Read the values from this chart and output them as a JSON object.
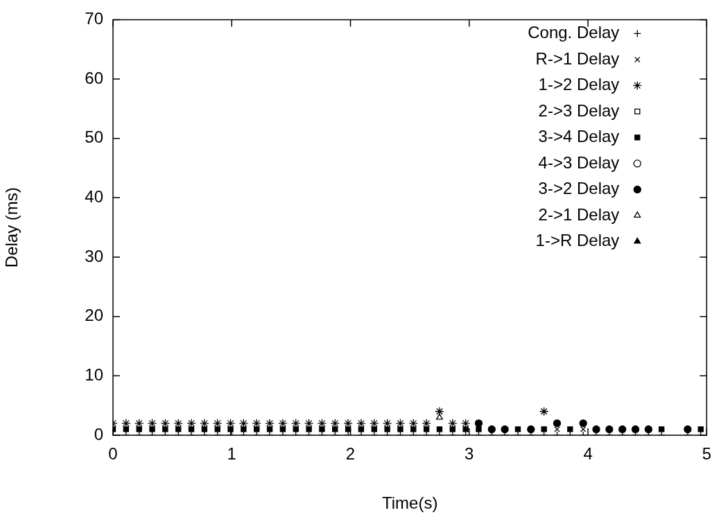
{
  "chart_data": {
    "type": "scatter",
    "xlabel": "Time(s)",
    "ylabel": "Delay (ms)",
    "x": [
      0,
      0.11,
      0.22,
      0.33,
      0.44,
      0.55,
      0.66,
      0.77,
      0.88,
      0.99,
      1.1,
      1.21,
      1.32,
      1.43,
      1.54,
      1.65,
      1.76,
      1.87,
      1.98,
      2.09,
      2.2,
      2.31,
      2.42,
      2.53,
      2.64,
      2.75,
      2.86,
      2.97,
      3.08,
      3.19,
      3.3,
      3.41,
      3.52,
      3.63,
      3.74,
      3.85,
      3.96,
      4.07,
      4.18,
      4.29,
      4.4,
      4.51,
      4.62,
      4.84,
      4.95
    ],
    "series": [
      {
        "name": "Cong. Delay",
        "color": "#000000",
        "marker": "cross",
        "values": [
          0,
          0,
          0,
          0,
          0,
          0,
          0,
          0,
          0,
          0,
          0,
          0,
          0,
          0,
          0,
          0,
          0,
          0,
          0,
          0,
          0,
          0,
          0,
          0,
          0,
          0,
          0,
          0,
          0,
          0,
          0,
          0,
          0,
          0,
          0,
          0,
          0,
          0,
          0,
          0,
          0,
          0,
          0,
          0,
          0
        ]
      },
      {
        "name": "R->1 Delay",
        "color": "#000000",
        "marker": "cross",
        "values": [
          null,
          null,
          null,
          null,
          null,
          null,
          null,
          null,
          null,
          null,
          null,
          null,
          null,
          null,
          null,
          null,
          null,
          null,
          null,
          null,
          null,
          null,
          null,
          null,
          null,
          null,
          null,
          null,
          null,
          null,
          null,
          null,
          null,
          null,
          1,
          null,
          1,
          null,
          null,
          null,
          null,
          null,
          null,
          null,
          null
        ]
      },
      {
        "name": "1->2 Delay",
        "color": "#000000",
        "marker": "cross",
        "values": [
          2,
          2,
          2,
          2,
          2,
          2,
          2,
          2,
          2,
          2,
          2,
          2,
          2,
          2,
          2,
          2,
          2,
          2,
          2,
          2,
          2,
          2,
          2,
          2,
          2,
          4,
          2,
          2,
          null,
          null,
          null,
          null,
          null,
          4,
          null,
          null,
          null,
          null,
          null,
          null,
          null,
          null,
          null,
          null,
          null
        ]
      },
      {
        "name": "2->3 Delay",
        "color": "#000000",
        "marker": "square",
        "values": [
          null,
          null,
          null,
          null,
          null,
          null,
          null,
          null,
          null,
          null,
          null,
          null,
          null,
          null,
          null,
          null,
          null,
          null,
          null,
          null,
          null,
          null,
          null,
          null,
          null,
          null,
          null,
          null,
          null,
          null,
          null,
          null,
          null,
          null,
          null,
          null,
          null,
          null,
          null,
          null,
          null,
          null,
          null,
          null,
          null
        ]
      },
      {
        "name": "3->4 Delay",
        "color": "#000000",
        "marker": "square",
        "values": [
          1,
          1,
          1,
          1,
          1,
          1,
          1,
          1,
          1,
          1,
          1,
          1,
          1,
          1,
          1,
          1,
          1,
          1,
          1,
          1,
          1,
          1,
          1,
          1,
          1,
          1,
          1,
          1,
          1,
          null,
          null,
          1,
          null,
          1,
          null,
          1,
          null,
          null,
          null,
          null,
          null,
          null,
          1,
          null,
          1
        ]
      },
      {
        "name": "4->3 Delay",
        "color": "#000000",
        "marker": "circle",
        "values": [
          null,
          null,
          null,
          null,
          null,
          null,
          null,
          null,
          null,
          null,
          null,
          null,
          null,
          null,
          null,
          null,
          null,
          null,
          null,
          null,
          null,
          null,
          null,
          null,
          null,
          null,
          null,
          null,
          null,
          null,
          null,
          null,
          null,
          null,
          null,
          null,
          null,
          null,
          null,
          null,
          null,
          null,
          null,
          null,
          null
        ]
      },
      {
        "name": "3->2 Delay",
        "color": "#000000",
        "marker": "circle",
        "values": [
          null,
          null,
          null,
          null,
          null,
          null,
          null,
          null,
          null,
          null,
          null,
          null,
          null,
          null,
          null,
          null,
          null,
          null,
          null,
          null,
          null,
          null,
          null,
          null,
          null,
          null,
          null,
          null,
          2,
          1,
          1,
          null,
          1,
          null,
          2,
          null,
          2,
          1,
          1,
          1,
          1,
          1,
          null,
          1,
          null
        ]
      },
      {
        "name": "2->1 Delay",
        "color": "#000000",
        "marker": "triangle",
        "values": [
          null,
          null,
          null,
          null,
          null,
          null,
          null,
          null,
          null,
          null,
          null,
          null,
          null,
          null,
          null,
          null,
          null,
          null,
          null,
          null,
          null,
          null,
          null,
          null,
          null,
          3,
          null,
          null,
          null,
          null,
          null,
          null,
          null,
          null,
          null,
          null,
          null,
          null,
          null,
          null,
          null,
          null,
          null,
          null,
          null
        ]
      },
      {
        "name": "1->R Delay",
        "color": "#000000",
        "marker": "triangle",
        "values": [
          null,
          null,
          null,
          null,
          null,
          null,
          null,
          null,
          null,
          null,
          null,
          null,
          null,
          null,
          null,
          null,
          null,
          null,
          null,
          null,
          null,
          null,
          null,
          null,
          null,
          null,
          null,
          null,
          null,
          null,
          null,
          null,
          null,
          null,
          null,
          null,
          null,
          null,
          null,
          null,
          null,
          null,
          null,
          null,
          null
        ]
      }
    ],
    "xlim": [
      0,
      5
    ],
    "xticks": [
      0,
      1,
      2,
      3,
      4,
      5
    ],
    "ylim": [
      0,
      70
    ],
    "yticks": [
      0,
      10,
      20,
      30,
      40,
      50,
      60,
      70
    ],
    "grid": false,
    "legend": "top right"
  }
}
